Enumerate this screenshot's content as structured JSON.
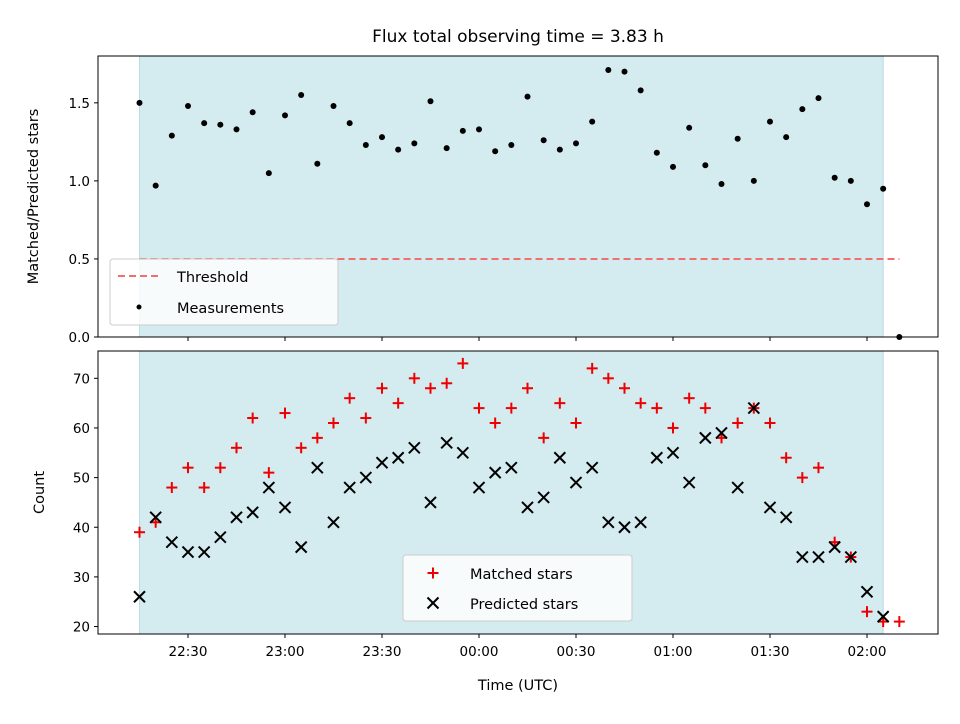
{
  "chart_data": [
    {
      "type": "scatter",
      "title": "Flux total observing time = 3.83 h",
      "ylabel": "Matched/Predicted stars",
      "xlabel": "",
      "ylim": [
        0,
        1.8
      ],
      "yticks": [
        0.0,
        0.5,
        1.0,
        1.5
      ],
      "yticklabels": [
        "0.0",
        "0.5",
        "1.0",
        "1.5"
      ],
      "grid": false,
      "legend_position": "lower-left",
      "observing_window": {
        "start": "22:15",
        "end": "02:05",
        "color": "#d4ebf0"
      },
      "threshold": {
        "name": "Threshold",
        "y": 0.5,
        "style": "dashed",
        "color": "#f07070",
        "x_start": "22:15",
        "x_end": "02:10"
      },
      "series": [
        {
          "name": "Measurements",
          "color": "#000000",
          "x": [
            "22:15",
            "22:20",
            "22:25",
            "22:30",
            "22:35",
            "22:40",
            "22:45",
            "22:50",
            "22:55",
            "23:00",
            "23:05",
            "23:10",
            "23:15",
            "23:20",
            "23:25",
            "23:30",
            "23:35",
            "23:40",
            "23:45",
            "23:50",
            "23:55",
            "00:00",
            "00:05",
            "00:10",
            "00:15",
            "00:20",
            "00:25",
            "00:30",
            "00:35",
            "00:40",
            "00:45",
            "00:50",
            "00:55",
            "01:00",
            "01:05",
            "01:10",
            "01:15",
            "01:20",
            "01:25",
            "01:30",
            "01:35",
            "01:40",
            "01:45",
            "01:50",
            "01:55",
            "02:00",
            "02:05",
            "02:10"
          ],
          "y": [
            1.5,
            0.97,
            1.29,
            1.48,
            1.37,
            1.36,
            1.33,
            1.44,
            1.05,
            1.42,
            1.55,
            1.11,
            1.48,
            1.37,
            1.23,
            1.28,
            1.2,
            1.24,
            1.51,
            1.21,
            1.32,
            1.33,
            1.19,
            1.23,
            1.54,
            1.26,
            1.2,
            1.24,
            1.38,
            1.71,
            1.7,
            1.58,
            1.18,
            1.09,
            1.34,
            1.1,
            0.98,
            1.27,
            1.0,
            1.38,
            1.28,
            1.46,
            1.53,
            1.02,
            1.0,
            0.85,
            0.95,
            0.0
          ]
        }
      ]
    },
    {
      "type": "scatter",
      "title": "",
      "ylabel": "Count",
      "xlabel": "Time (UTC)",
      "ylim": [
        18.5,
        75.5
      ],
      "yticks": [
        20,
        30,
        40,
        50,
        60,
        70
      ],
      "yticklabels": [
        "20",
        "30",
        "40",
        "50",
        "60",
        "70"
      ],
      "xticks": [
        "22:30",
        "23:00",
        "23:30",
        "00:00",
        "00:30",
        "01:00",
        "01:30",
        "02:00"
      ],
      "grid": false,
      "legend_position": "lower-center",
      "series": [
        {
          "name": "Matched stars",
          "marker": "plus",
          "color": "#ee0000",
          "x": [
            "22:15",
            "22:20",
            "22:25",
            "22:30",
            "22:35",
            "22:40",
            "22:45",
            "22:50",
            "22:55",
            "23:00",
            "23:05",
            "23:10",
            "23:15",
            "23:20",
            "23:25",
            "23:30",
            "23:35",
            "23:40",
            "23:45",
            "23:50",
            "23:55",
            "00:00",
            "00:05",
            "00:10",
            "00:15",
            "00:20",
            "00:25",
            "00:30",
            "00:35",
            "00:40",
            "00:45",
            "00:50",
            "00:55",
            "01:00",
            "01:05",
            "01:10",
            "01:15",
            "01:20",
            "01:25",
            "01:30",
            "01:35",
            "01:40",
            "01:45",
            "01:50",
            "01:55",
            "02:00",
            "02:05",
            "02:10"
          ],
          "y": [
            39,
            41,
            48,
            52,
            48,
            52,
            56,
            62,
            51,
            63,
            56,
            58,
            61,
            66,
            62,
            68,
            65,
            70,
            68,
            69,
            73,
            64,
            61,
            64,
            68,
            58,
            65,
            61,
            72,
            70,
            68,
            65,
            64,
            60,
            66,
            64,
            58,
            61,
            64,
            61,
            54,
            50,
            52,
            37,
            34,
            23,
            21,
            21
          ]
        },
        {
          "name": "Predicted stars",
          "marker": "x",
          "color": "#000000",
          "x": [
            "22:15",
            "22:20",
            "22:25",
            "22:30",
            "22:35",
            "22:40",
            "22:45",
            "22:50",
            "22:55",
            "23:00",
            "23:05",
            "23:10",
            "23:15",
            "23:20",
            "23:25",
            "23:30",
            "23:35",
            "23:40",
            "23:45",
            "23:50",
            "23:55",
            "00:00",
            "00:05",
            "00:10",
            "00:15",
            "00:20",
            "00:25",
            "00:30",
            "00:35",
            "00:40",
            "00:45",
            "00:50",
            "00:55",
            "01:00",
            "01:05",
            "01:10",
            "01:15",
            "01:20",
            "01:25",
            "01:30",
            "01:35",
            "01:40",
            "01:45",
            "01:50",
            "01:55",
            "02:00",
            "02:05"
          ],
          "y": [
            26,
            42,
            37,
            35,
            35,
            38,
            42,
            43,
            48,
            44,
            36,
            52,
            41,
            48,
            50,
            53,
            54,
            56,
            45,
            57,
            55,
            48,
            51,
            52,
            44,
            46,
            54,
            49,
            52,
            41,
            40,
            41,
            54,
            55,
            49,
            58,
            59,
            48,
            64,
            44,
            42,
            34,
            34,
            36,
            34,
            27,
            22
          ]
        }
      ]
    }
  ]
}
